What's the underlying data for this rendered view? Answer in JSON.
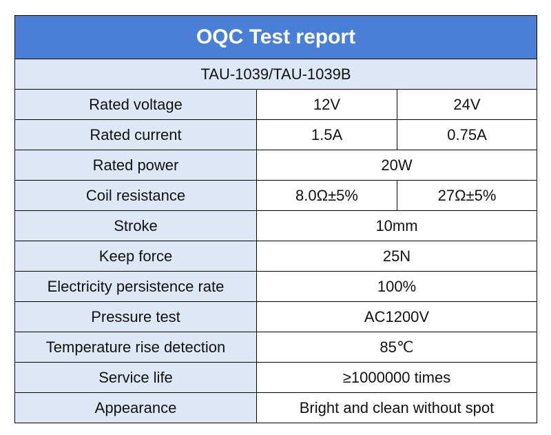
{
  "title": "OQC Test report",
  "model": "TAU-1039/TAU-1039B",
  "rows": [
    {
      "label": "Rated voltage",
      "values": [
        "12V",
        "24V"
      ]
    },
    {
      "label": "Rated current",
      "values": [
        "1.5A",
        "0.75A"
      ]
    },
    {
      "label": "Rated power",
      "values": [
        "20W"
      ]
    },
    {
      "label": "Coil resistance",
      "values": [
        "8.0Ω±5%",
        "27Ω±5%"
      ]
    },
    {
      "label": "Stroke",
      "values": [
        "10mm"
      ]
    },
    {
      "label": "Keep force",
      "values": [
        "25N"
      ]
    },
    {
      "label": "Electricity persistence rate",
      "values": [
        "100%"
      ]
    },
    {
      "label": "Pressure test",
      "values": [
        "AC1200V"
      ]
    },
    {
      "label": "Temperature rise detection",
      "values": [
        "85℃"
      ]
    },
    {
      "label": "Service life",
      "values": [
        "≥1000000 times"
      ]
    },
    {
      "label": "Appearance",
      "values": [
        "Bright and clean without spot"
      ]
    }
  ],
  "colors": {
    "header_bg": "#4a7fd6",
    "label_bg": "#dde7f5",
    "value_bg": "#ffffff",
    "border": "#000000"
  }
}
